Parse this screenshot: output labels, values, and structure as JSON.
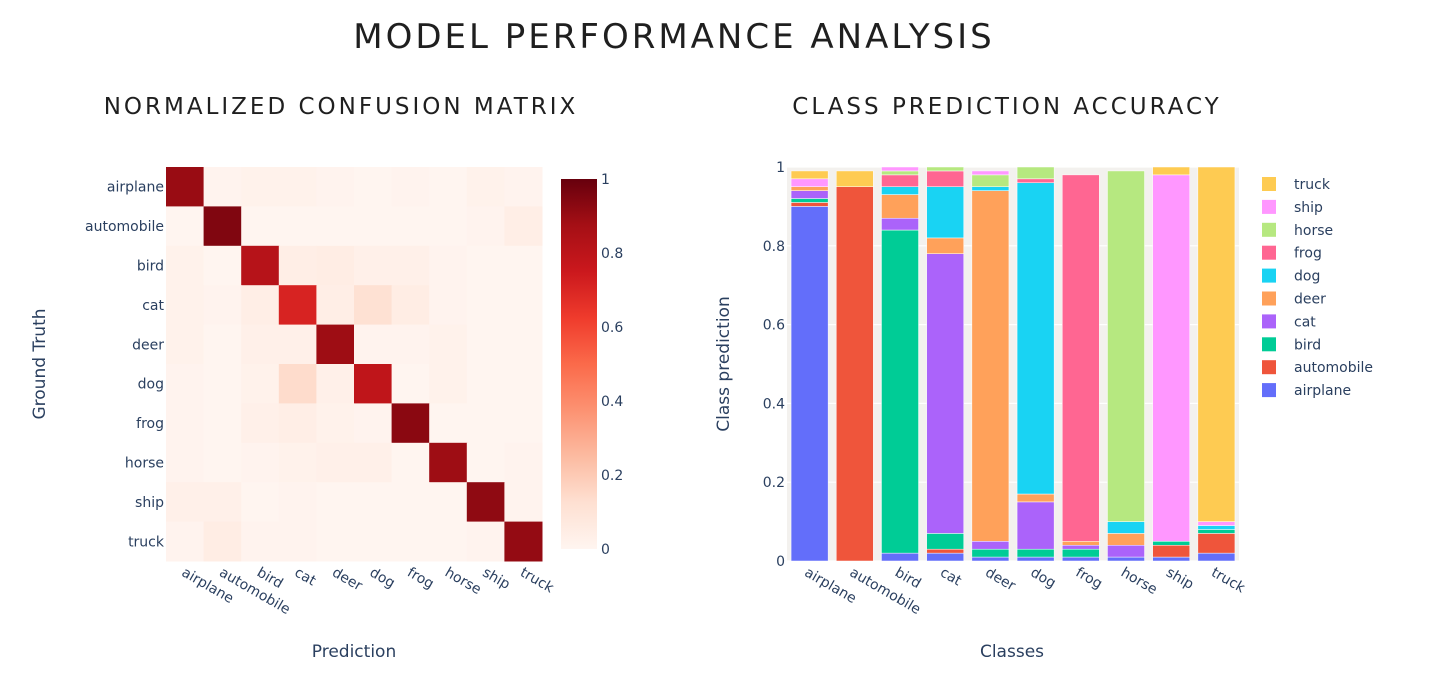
{
  "page": {
    "title": "MODEL PERFORMANCE ANALYSIS"
  },
  "chart_data": [
    {
      "type": "heatmap",
      "title": "NORMALIZED CONFUSION MATRIX",
      "xlabel": "Prediction",
      "ylabel": "Ground Truth",
      "x_categories": [
        "airplane",
        "automobile",
        "bird",
        "cat",
        "deer",
        "dog",
        "frog",
        "horse",
        "ship",
        "truck"
      ],
      "y_categories": [
        "airplane",
        "automobile",
        "bird",
        "cat",
        "deer",
        "dog",
        "frog",
        "horse",
        "ship",
        "truck"
      ],
      "z": [
        [
          0.9,
          0.01,
          0.02,
          0.02,
          0.01,
          0.0,
          0.01,
          0.0,
          0.02,
          0.01
        ],
        [
          0.0,
          0.95,
          0.0,
          0.0,
          0.0,
          0.0,
          0.0,
          0.0,
          0.01,
          0.04
        ],
        [
          0.02,
          0.0,
          0.82,
          0.04,
          0.05,
          0.03,
          0.03,
          0.01,
          0.0,
          0.0
        ],
        [
          0.02,
          0.01,
          0.04,
          0.71,
          0.04,
          0.12,
          0.05,
          0.01,
          0.0,
          0.0
        ],
        [
          0.02,
          0.0,
          0.03,
          0.03,
          0.89,
          0.01,
          0.01,
          0.02,
          0.0,
          0.0
        ],
        [
          0.01,
          0.0,
          0.02,
          0.14,
          0.03,
          0.79,
          0.0,
          0.02,
          0.0,
          0.0
        ],
        [
          0.01,
          0.0,
          0.03,
          0.04,
          0.02,
          0.01,
          0.93,
          0.0,
          0.0,
          0.0
        ],
        [
          0.01,
          0.0,
          0.01,
          0.02,
          0.03,
          0.03,
          0.0,
          0.89,
          0.0,
          0.01
        ],
        [
          0.03,
          0.03,
          0.0,
          0.01,
          0.0,
          0.0,
          0.0,
          0.0,
          0.92,
          0.01
        ],
        [
          0.01,
          0.05,
          0.01,
          0.01,
          0.0,
          0.0,
          0.0,
          0.0,
          0.01,
          0.91
        ]
      ],
      "zlim": [
        0,
        1
      ],
      "colorbar_ticks": [
        "0",
        "0.2",
        "0.4",
        "0.6",
        "0.8",
        "1"
      ],
      "colorscale": [
        "#fff5f0",
        "#fee0d2",
        "#fcbba1",
        "#fc9272",
        "#fb6a4a",
        "#ef3b2c",
        "#cb181d",
        "#a50f15",
        "#67000d"
      ]
    },
    {
      "type": "bar",
      "stacked": true,
      "title": "CLASS PREDICTION ACCURACY",
      "xlabel": "Classes",
      "ylabel": "Class prediction",
      "categories": [
        "airplane",
        "automobile",
        "bird",
        "cat",
        "deer",
        "dog",
        "frog",
        "horse",
        "ship",
        "truck"
      ],
      "ylim": [
        0,
        1
      ],
      "yticks": [
        "0",
        "0.2",
        "0.4",
        "0.6",
        "0.8",
        "1"
      ],
      "grid": true,
      "legend_position": "right",
      "series": [
        {
          "name": "airplane",
          "color": "#636efa",
          "values": [
            0.9,
            0.0,
            0.02,
            0.02,
            0.01,
            0.01,
            0.01,
            0.01,
            0.01,
            0.02
          ]
        },
        {
          "name": "automobile",
          "color": "#ef553b",
          "values": [
            0.01,
            0.95,
            0.0,
            0.01,
            0.0,
            0.0,
            0.0,
            0.0,
            0.03,
            0.05
          ]
        },
        {
          "name": "bird",
          "color": "#00cc96",
          "values": [
            0.01,
            0.0,
            0.82,
            0.04,
            0.02,
            0.02,
            0.02,
            0.0,
            0.01,
            0.01
          ]
        },
        {
          "name": "cat",
          "color": "#ab63fa",
          "values": [
            0.02,
            0.0,
            0.03,
            0.71,
            0.02,
            0.12,
            0.01,
            0.03,
            0.0,
            0.0
          ]
        },
        {
          "name": "deer",
          "color": "#ffa15a",
          "values": [
            0.01,
            0.0,
            0.06,
            0.04,
            0.89,
            0.02,
            0.01,
            0.03,
            0.0,
            0.0
          ]
        },
        {
          "name": "dog",
          "color": "#19d3f3",
          "values": [
            0.0,
            0.0,
            0.02,
            0.13,
            0.01,
            0.79,
            0.0,
            0.03,
            0.0,
            0.01
          ]
        },
        {
          "name": "frog",
          "color": "#ff6692",
          "values": [
            0.0,
            0.0,
            0.03,
            0.04,
            0.0,
            0.01,
            0.93,
            0.0,
            0.0,
            0.0
          ]
        },
        {
          "name": "horse",
          "color": "#b6e880",
          "values": [
            0.0,
            0.0,
            0.01,
            0.01,
            0.03,
            0.03,
            0.0,
            0.89,
            0.0,
            0.0
          ]
        },
        {
          "name": "ship",
          "color": "#ff97ff",
          "values": [
            0.02,
            0.0,
            0.01,
            0.0,
            0.01,
            0.0,
            0.0,
            0.0,
            0.93,
            0.01
          ]
        },
        {
          "name": "truck",
          "color": "#fecb52",
          "values": [
            0.02,
            0.04,
            0.0,
            0.0,
            0.0,
            0.01,
            0.0,
            0.0,
            0.02,
            0.9
          ]
        }
      ]
    }
  ]
}
